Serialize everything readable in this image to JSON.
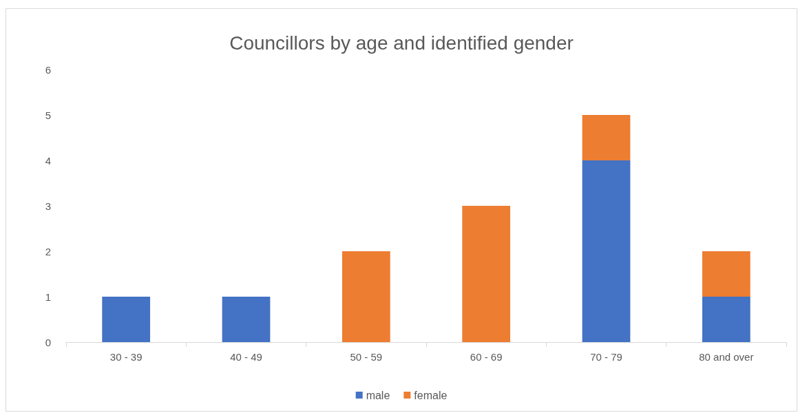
{
  "chart_data": {
    "type": "bar",
    "title": "Councillors by age and identified gender",
    "categories": [
      "30 - 39",
      "40 - 49",
      "50 - 59",
      "60 - 69",
      "70 - 79",
      "80 and over"
    ],
    "stacked": true,
    "series": [
      {
        "name": "male",
        "color": "#4472c4",
        "values": [
          1,
          1,
          0,
          0,
          4,
          1
        ]
      },
      {
        "name": "female",
        "color": "#ed7d31",
        "values": [
          0,
          0,
          2,
          3,
          1,
          1
        ]
      }
    ],
    "ylim": [
      0,
      6
    ],
    "yticks": [
      0,
      1,
      2,
      3,
      4,
      5,
      6
    ],
    "grid": false,
    "legend": "bottom"
  }
}
